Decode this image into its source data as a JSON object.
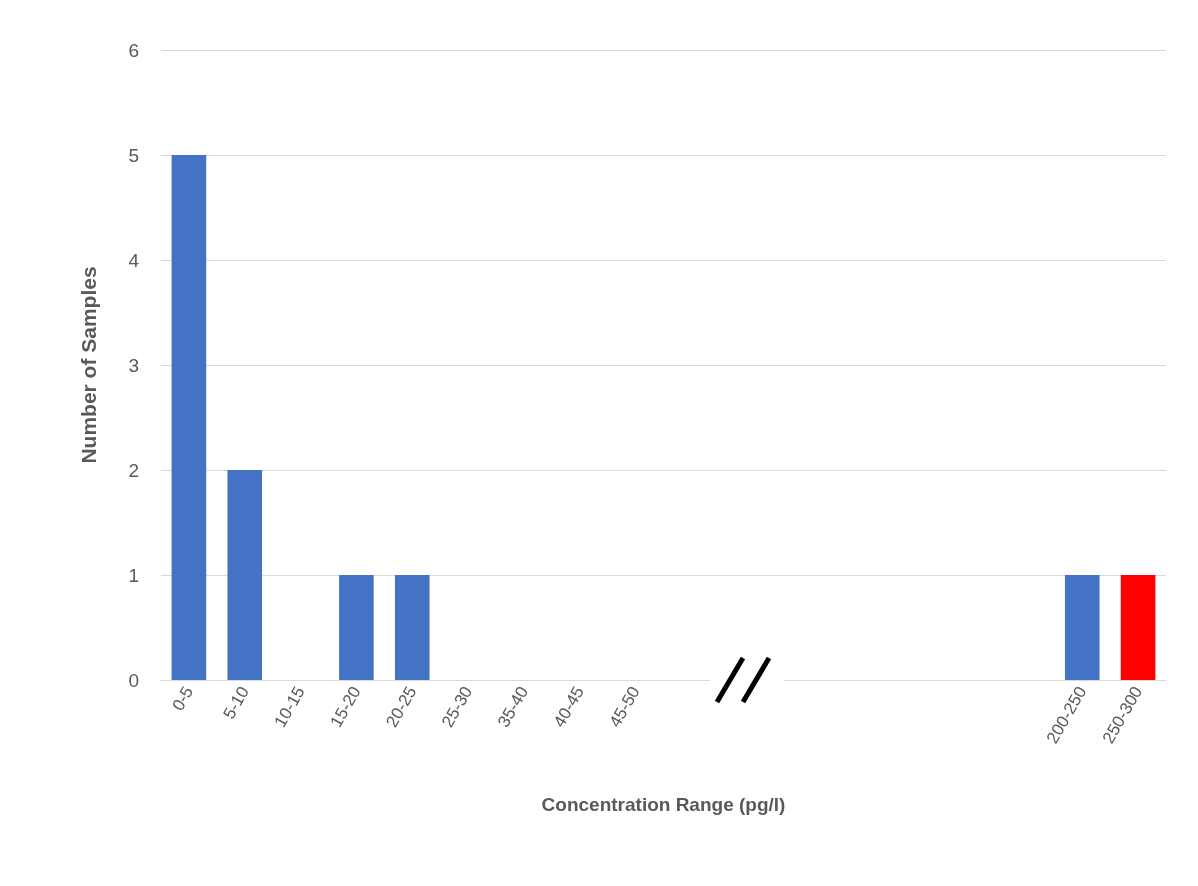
{
  "chart_data": {
    "type": "bar",
    "xlabel": "Concentration Range (pg/l)",
    "ylabel": "Number of Samples",
    "categories": [
      "0-5",
      "5-10",
      "10-15",
      "15-20",
      "20-25",
      "25-30",
      "35-40",
      "40-45",
      "45-50",
      null,
      null,
      null,
      null,
      null,
      null,
      null,
      "200-250",
      "250-300"
    ],
    "values": [
      5,
      2,
      0,
      1,
      1,
      0,
      0,
      0,
      0,
      null,
      null,
      null,
      null,
      null,
      null,
      null,
      1,
      1
    ],
    "colors": [
      "#4472c4",
      "#4472c4",
      "#4472c4",
      "#4472c4",
      "#4472c4",
      "#4472c4",
      "#4472c4",
      "#4472c4",
      "#4472c4",
      "#4472c4",
      "#4472c4",
      "#4472c4",
      "#4472c4",
      "#4472c4",
      "#4472c4",
      "#4472c4",
      "#4472c4",
      "#ff0000"
    ],
    "ylim": [
      0,
      6
    ],
    "yticks": [
      0,
      1,
      2,
      3,
      4,
      5,
      6
    ],
    "grid": "y"
  }
}
